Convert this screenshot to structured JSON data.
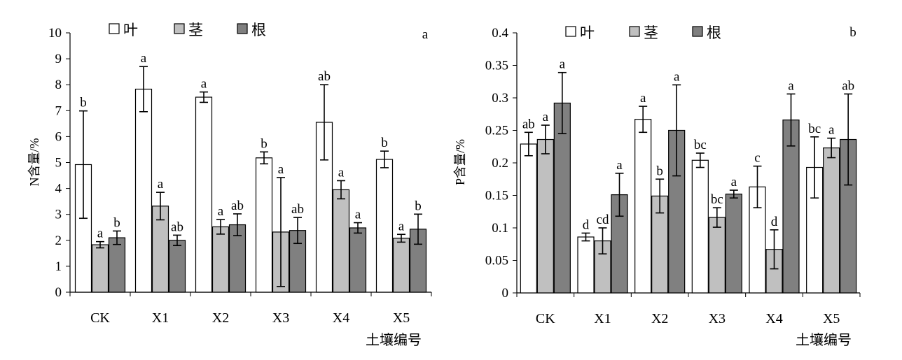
{
  "legend_labels": [
    "叶",
    "茎",
    "根"
  ],
  "colors": {
    "leaf": "#ffffff",
    "stem": "#c0c0c0",
    "root": "#808080",
    "axis": "#000000"
  },
  "chart_data": [
    {
      "type": "bar",
      "panel_label": "a",
      "title": "",
      "xlabel": "土壤编号",
      "ylabel": "N含量/%",
      "categories": [
        "CK",
        "X1",
        "X2",
        "X3",
        "X4",
        "X5"
      ],
      "ylim": [
        0,
        10
      ],
      "yticks": [
        0,
        1,
        2,
        3,
        4,
        5,
        6,
        7,
        8,
        9,
        10
      ],
      "ytick_labels": [
        "0",
        "1",
        "2",
        "3",
        "4",
        "5",
        "6",
        "7",
        "8",
        "9",
        "10"
      ],
      "legend": "top-left",
      "series": [
        {
          "name": "叶",
          "values": [
            4.92,
            7.83,
            7.52,
            5.18,
            6.55,
            5.12
          ],
          "errors": [
            2.07,
            0.87,
            0.2,
            0.23,
            1.45,
            0.32
          ],
          "letters": [
            "b",
            "a",
            "a",
            "b",
            "ab",
            "b"
          ]
        },
        {
          "name": "茎",
          "values": [
            1.83,
            3.32,
            2.52,
            2.32,
            3.95,
            2.08
          ],
          "errors": [
            0.12,
            0.53,
            0.28,
            2.1,
            0.35,
            0.15
          ],
          "letters": [
            "a",
            "a",
            "a",
            "a",
            "a",
            "a"
          ]
        },
        {
          "name": "根",
          "values": [
            2.1,
            2.0,
            2.6,
            2.38,
            2.48,
            2.43
          ],
          "errors": [
            0.26,
            0.2,
            0.42,
            0.5,
            0.2,
            0.58
          ],
          "letters": [
            "b",
            "ab",
            "ab",
            "ab",
            "a",
            "b"
          ]
        }
      ]
    },
    {
      "type": "bar",
      "panel_label": "b",
      "title": "",
      "xlabel": "土壤编号",
      "ylabel": "P含量/%",
      "categories": [
        "CK",
        "X1",
        "X2",
        "X3",
        "X4",
        "X5"
      ],
      "ylim": [
        0,
        0.4
      ],
      "yticks": [
        0,
        0.05,
        0.1,
        0.15,
        0.2,
        0.25,
        0.3,
        0.35,
        0.4
      ],
      "ytick_labels": [
        "0",
        "0.05",
        "0.1",
        "0.15",
        "0.2",
        "0.25",
        "0.3",
        "0.35",
        "0.4"
      ],
      "legend": "top-left",
      "series": [
        {
          "name": "叶",
          "values": [
            0.229,
            0.086,
            0.267,
            0.204,
            0.163,
            0.193
          ],
          "errors": [
            0.018,
            0.006,
            0.02,
            0.011,
            0.032,
            0.047
          ],
          "letters": [
            "ab",
            "d",
            "a",
            "bc",
            "c",
            "bc"
          ]
        },
        {
          "name": "茎",
          "values": [
            0.236,
            0.08,
            0.149,
            0.116,
            0.067,
            0.223
          ],
          "errors": [
            0.022,
            0.02,
            0.026,
            0.015,
            0.03,
            0.015
          ],
          "letters": [
            "a",
            "cd",
            "b",
            "bc",
            "d",
            "a"
          ]
        },
        {
          "name": "根",
          "values": [
            0.292,
            0.151,
            0.25,
            0.152,
            0.266,
            0.236
          ],
          "errors": [
            0.047,
            0.033,
            0.07,
            0.006,
            0.04,
            0.07
          ],
          "letters": [
            "a",
            "a",
            "a",
            "a",
            "a",
            "ab"
          ]
        }
      ]
    }
  ]
}
